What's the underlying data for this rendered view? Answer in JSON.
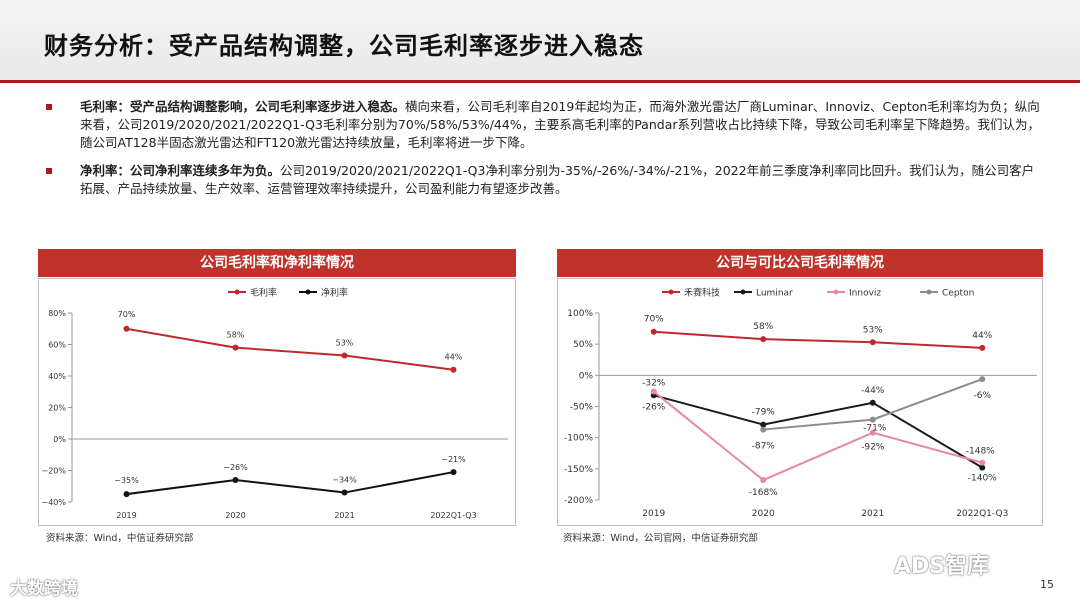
{
  "page_title": "财务分析：受产品结构调整，公司毛利率逐步进入稳态",
  "bullets": [
    {
      "head": "毛利率：受产品结构调整影响，公司毛利率逐步进入稳态。",
      "body": "横向来看，公司毛利率自2019年起均为正，而海外激光雷达厂商Luminar、Innoviz、Cepton毛利率均为负；纵向来看，公司2019/2020/2021/2022Q1-Q3毛利率分别为70%/58%/53%/44%，主要系高毛利率的Pandar系列营收占比持续下降，导致公司毛利率呈下降趋势。我们认为，随公司AT128半固态激光雷达和FT120激光雷达持续放量，毛利率将进一步下降。"
    },
    {
      "head": "净利率：公司净利率连续多年为负。",
      "body": "公司2019/2020/2021/2022Q1-Q3净利率分别为-35%/-26%/-34%/-21%，2022年前三季度净利率同比回升。我们认为，随公司客户拓展、产品持续放量、生产效率、运营管理效率持续提升，公司盈利能力有望逐步改善。"
    }
  ],
  "chart_data": [
    {
      "type": "line",
      "title": "公司毛利率和净利率情况",
      "categories": [
        "2019",
        "2020",
        "2021",
        "2022Q1-Q3"
      ],
      "series": [
        {
          "name": "毛利率",
          "color": "#c0282d",
          "values": [
            70,
            58,
            53,
            44
          ],
          "labels": [
            "70%",
            "58%",
            "53%",
            "44%"
          ]
        },
        {
          "name": "净利率",
          "color": "#111111",
          "values": [
            -35,
            -26,
            -34,
            -21
          ],
          "labels": [
            "−35%",
            "−26%",
            "−34%",
            "−21%"
          ]
        }
      ],
      "ylim": [
        -40,
        80
      ],
      "yticks": [
        "80%",
        "60%",
        "40%",
        "20%",
        "0%",
        "−20%",
        "−40%"
      ],
      "legend": "top-center",
      "source": "资料来源：Wind，中信证券研究部"
    },
    {
      "type": "line",
      "title": "公司与可比公司毛利率情况",
      "categories": [
        "2019",
        "2020",
        "2021",
        "2022Q1-Q3"
      ],
      "series": [
        {
          "name": "禾赛科技",
          "color": "#c0282d",
          "values": [
            70,
            58,
            53,
            44
          ],
          "labels": [
            "70%",
            "58%",
            "53%",
            "44%"
          ]
        },
        {
          "name": "Luminar",
          "color": "#1a1a1a",
          "values": [
            -32,
            -79,
            -44,
            -148
          ],
          "labels": [
            "-32%",
            "-79%",
            "-44%",
            "-148%"
          ]
        },
        {
          "name": "Innoviz",
          "color": "#e88a9a",
          "values": [
            -26,
            -168,
            -92,
            -140
          ],
          "labels": [
            "-26%",
            "-168%",
            "-92%",
            "-140%"
          ]
        },
        {
          "name": "Cepton",
          "color": "#8c8c8c",
          "values": [
            null,
            -87,
            -71,
            -6
          ],
          "labels": [
            "",
            "-87%",
            "-71%",
            "-6%"
          ]
        }
      ],
      "ylim": [
        -200,
        100
      ],
      "yticks": [
        "100%",
        "50%",
        "0%",
        "-50%",
        "-100%",
        "-150%",
        "-200%"
      ],
      "legend": "top-center",
      "source": "资料来源：Wind，公司官网，中信证券研究部"
    }
  ],
  "footer": {
    "watermark_left": "大数跨境",
    "watermark_right": "ADS智库",
    "page_number": "15"
  }
}
